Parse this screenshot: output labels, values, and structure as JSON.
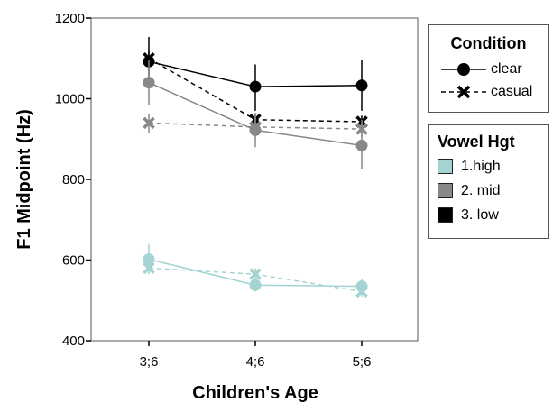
{
  "chart_data": {
    "type": "line",
    "xlabel": "Children's Age",
    "ylabel": "F1 Midpoint (Hz)",
    "categories": [
      "3;6",
      "4;6",
      "5;6"
    ],
    "ylim": [
      400,
      1200
    ],
    "yticks": [
      400,
      600,
      800,
      1000,
      1200
    ],
    "grid": false,
    "series": [
      {
        "vowel": "3. low",
        "condition": "clear",
        "color": "#000000",
        "marker": "circle",
        "dash": "solid",
        "values": [
          1092,
          1030,
          1033
        ],
        "err_low": [
          1030,
          970,
          970
        ],
        "err_high": [
          1153,
          1085,
          1095
        ]
      },
      {
        "vowel": "3. low",
        "condition": "casual",
        "color": "#000000",
        "marker": "x",
        "dash": "dashed",
        "values": [
          1100,
          948,
          943
        ],
        "err_low": [
          1080,
          930,
          925
        ],
        "err_high": [
          1118,
          962,
          958
        ]
      },
      {
        "vowel": "2. mid",
        "condition": "clear",
        "color": "#888888",
        "marker": "circle",
        "dash": "solid",
        "values": [
          1040,
          922,
          884
        ],
        "err_low": [
          985,
          880,
          825
        ],
        "err_high": [
          1095,
          965,
          940
        ]
      },
      {
        "vowel": "2. mid",
        "condition": "casual",
        "color": "#888888",
        "marker": "x",
        "dash": "dashed",
        "values": [
          940,
          930,
          925
        ],
        "err_low": [
          915,
          905,
          905
        ],
        "err_high": [
          962,
          955,
          948
        ]
      },
      {
        "vowel": "1.high",
        "condition": "clear",
        "color": "#a3d3d3",
        "marker": "circle",
        "dash": "solid",
        "values": [
          602,
          538,
          535
        ],
        "err_low": [
          580,
          522,
          520
        ],
        "err_high": [
          640,
          555,
          552
        ]
      },
      {
        "vowel": "1.high",
        "condition": "casual",
        "color": "#a3d3d3",
        "marker": "x",
        "dash": "dashed",
        "values": [
          580,
          565,
          522
        ],
        "err_low": [
          565,
          550,
          510
        ],
        "err_high": [
          595,
          580,
          535
        ]
      }
    ]
  },
  "legend_condition": {
    "title": "Condition",
    "items": [
      {
        "label": "clear",
        "marker": "circle",
        "dash": "solid"
      },
      {
        "label": "casual",
        "marker": "x",
        "dash": "dashed"
      }
    ]
  },
  "legend_vowel": {
    "title": "Vowel Hgt",
    "items": [
      {
        "label": "1.high",
        "color": "#a3d3d3"
      },
      {
        "label": "2. mid",
        "color": "#888888"
      },
      {
        "label": "3. low",
        "color": "#000000"
      }
    ]
  }
}
